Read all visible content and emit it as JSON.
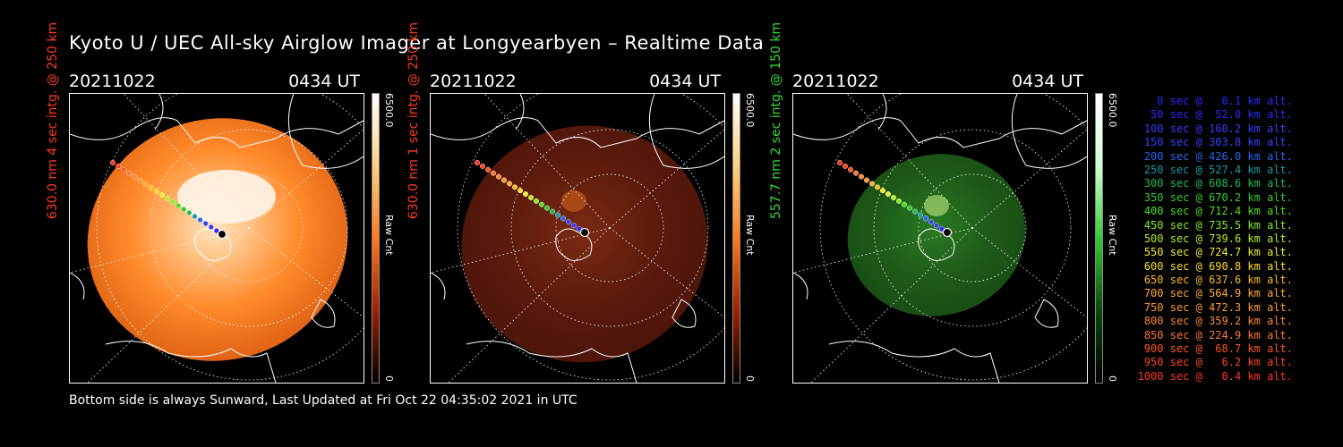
{
  "title": "Kyoto U / UEC All-sky Airglow Imager at Longyearbyen – Realtime Data",
  "footer": "Bottom side is always Sunward, Last Updated at Fri Oct 22 04:35:02 2021 in UTC",
  "colors": {
    "red_label": "#ff3a1a",
    "green_label": "#33dd33"
  },
  "panels": [
    {
      "date": "20211022",
      "time": "0434 UT",
      "vlabel": "630.0 nm 4 sec intg. @ 250 km",
      "cbar_max": "6500.0",
      "cbar_unit": "Raw Cnt",
      "cbar_min": "0",
      "color_scheme": "orange"
    },
    {
      "date": "20211022",
      "time": "0434 UT",
      "vlabel": "630.0 nm 1 sec intg. @ 250 km",
      "cbar_max": "6500.0",
      "cbar_unit": "Raw Cnt",
      "cbar_min": "0",
      "color_scheme": "dark-red"
    },
    {
      "date": "20211022",
      "time": "0434 UT",
      "vlabel": "557.7 nm 2 sec intg. @ 150 km",
      "cbar_max": "6500.0",
      "cbar_unit": "Raw Cnt",
      "cbar_min": "0",
      "color_scheme": "green"
    }
  ],
  "legend": [
    {
      "text": "0 sec @   0.1 km alt.",
      "color": "#2a2aff"
    },
    {
      "text": "50 sec @  52.0 km alt.",
      "color": "#2a2aff"
    },
    {
      "text": "100 sec @ 160.2 km alt.",
      "color": "#3a3aff"
    },
    {
      "text": "150 sec @ 303.8 km alt.",
      "color": "#3344ff"
    },
    {
      "text": "200 sec @ 426.0 km alt.",
      "color": "#2a66ee"
    },
    {
      "text": "250 sec @ 527.4 km alt.",
      "color": "#1a9aaa"
    },
    {
      "text": "300 sec @ 608.6 km alt.",
      "color": "#22bb55"
    },
    {
      "text": "350 sec @ 670.2 km alt.",
      "color": "#33cc33"
    },
    {
      "text": "400 sec @ 712.4 km alt.",
      "color": "#55dd22"
    },
    {
      "text": "450 sec @ 735.5 km alt.",
      "color": "#88ee22"
    },
    {
      "text": "500 sec @ 739.6 km alt.",
      "color": "#bbee22"
    },
    {
      "text": "550 sec @ 724.7 km alt.",
      "color": "#eeee33"
    },
    {
      "text": "600 sec @ 690.8 km alt.",
      "color": "#ffdd22"
    },
    {
      "text": "650 sec @ 637.6 km alt.",
      "color": "#ffbb22"
    },
    {
      "text": "700 sec @ 564.9 km alt.",
      "color": "#ffaa33"
    },
    {
      "text": "750 sec @ 472.3 km alt.",
      "color": "#ff9933"
    },
    {
      "text": "800 sec @ 359.2 km alt.",
      "color": "#ff8833"
    },
    {
      "text": "850 sec @ 224.9 km alt.",
      "color": "#ff7733"
    },
    {
      "text": "900 sec @  68.7 km alt.",
      "color": "#ff5522"
    },
    {
      "text": "950 sec @   6.2 km alt.",
      "color": "#ff4422"
    },
    {
      "text": "1000 sec @   0.4 km alt.",
      "color": "#ff3322"
    }
  ]
}
